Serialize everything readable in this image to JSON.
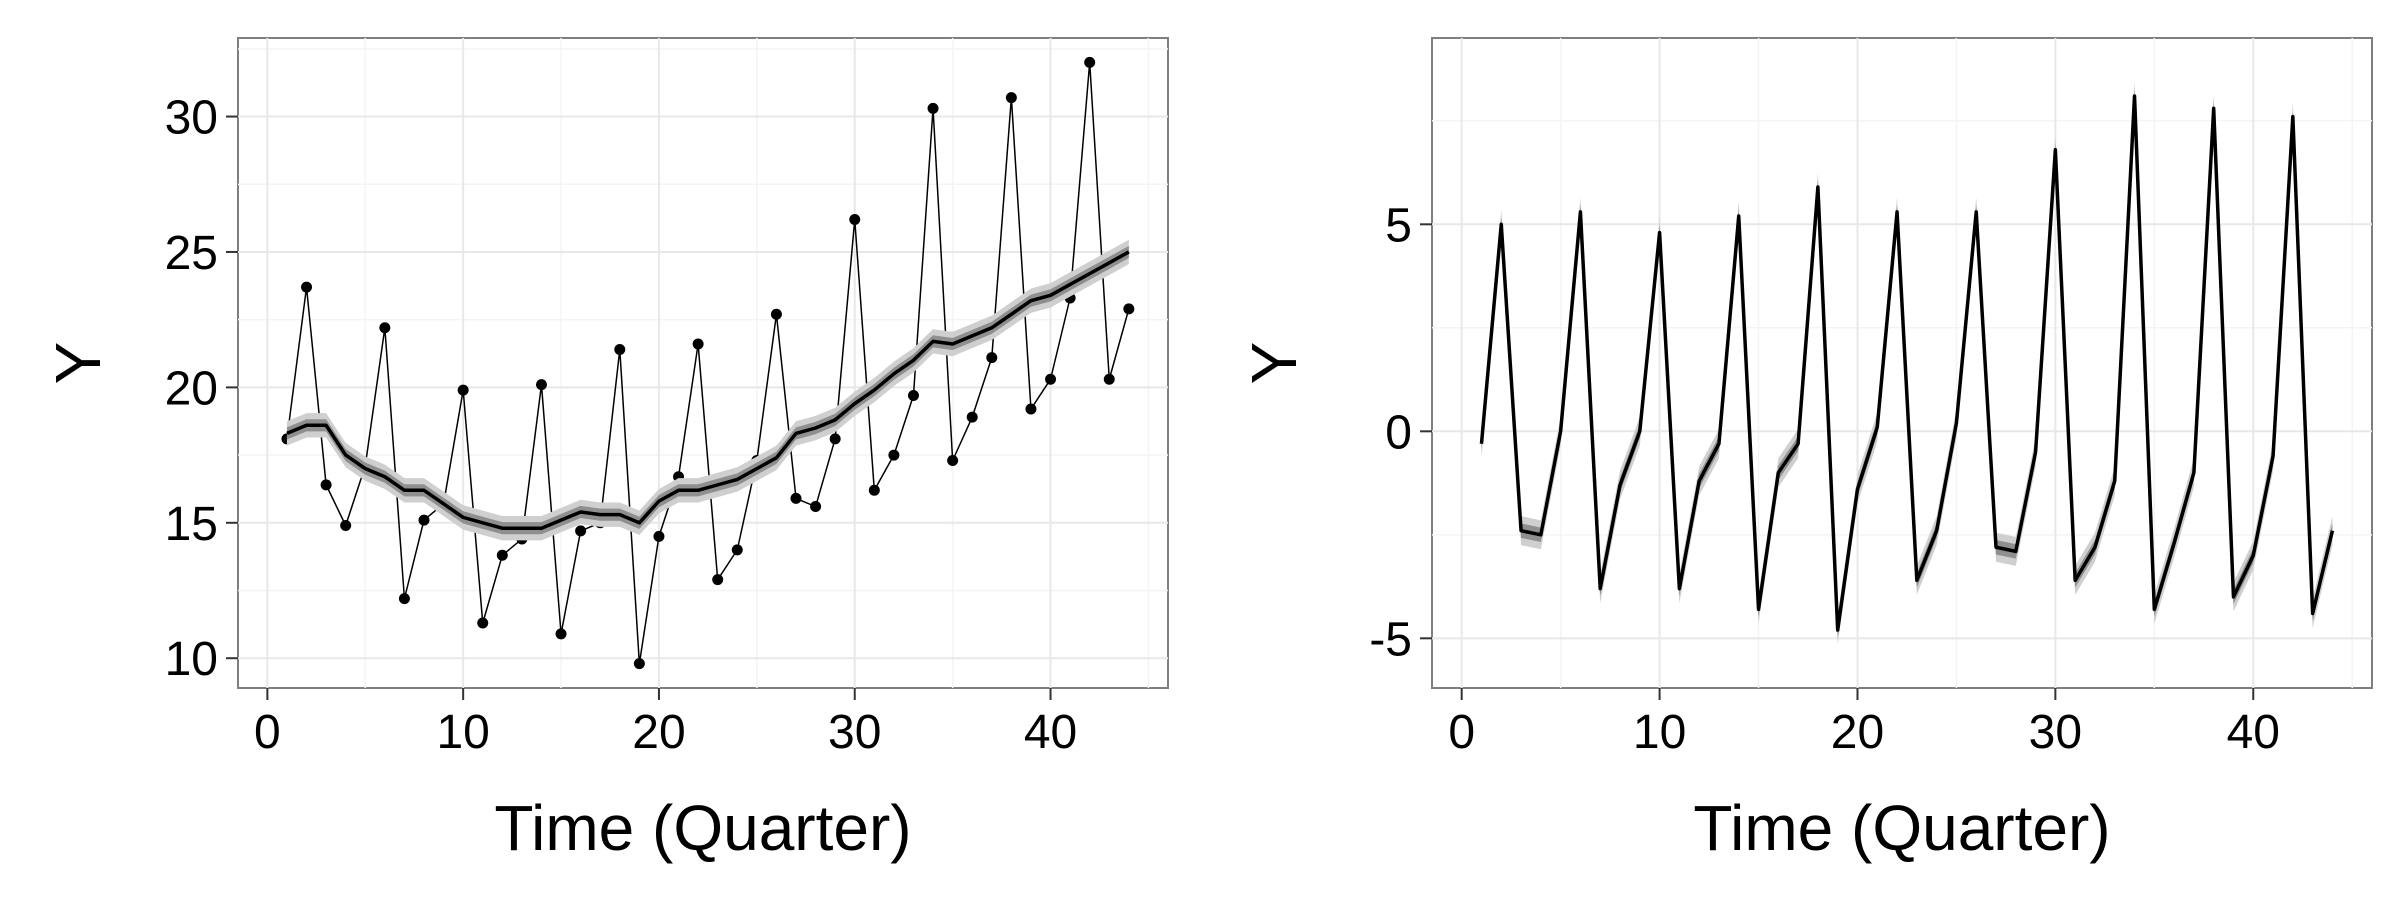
{
  "chart_data": [
    {
      "type": "line",
      "title": "",
      "xlabel": "Time (Quarter)",
      "ylabel": "Y",
      "xlim": [
        -1.5,
        46
      ],
      "ylim": [
        8.9,
        32.9
      ],
      "xticks": [
        0,
        10,
        20,
        30,
        40
      ],
      "yticks": [
        10,
        15,
        20,
        25,
        30
      ],
      "grid": true,
      "legend": "none",
      "series": [
        {
          "role": "observed",
          "markers": true,
          "x": [
            1,
            2,
            3,
            4,
            5,
            6,
            7,
            8,
            9,
            10,
            11,
            12,
            13,
            14,
            15,
            16,
            17,
            18,
            19,
            20,
            21,
            22,
            23,
            24,
            25,
            26,
            27,
            28,
            29,
            30,
            31,
            32,
            33,
            34,
            35,
            36,
            37,
            38,
            39,
            40,
            41,
            42,
            43,
            44
          ],
          "values": [
            18.1,
            23.7,
            16.4,
            14.9,
            17.1,
            22.2,
            12.2,
            15.1,
            15.7,
            19.9,
            11.3,
            13.8,
            14.4,
            20.1,
            10.9,
            14.7,
            15.0,
            21.4,
            9.8,
            14.5,
            16.7,
            21.6,
            12.9,
            14.0,
            17.3,
            22.7,
            15.9,
            15.6,
            18.1,
            26.2,
            16.2,
            17.5,
            19.7,
            30.3,
            17.3,
            18.9,
            21.1,
            30.7,
            19.2,
            20.3,
            23.3,
            32.0,
            20.3,
            22.9
          ]
        },
        {
          "role": "trend",
          "band": [
            0.45,
            0.9
          ],
          "x": [
            1,
            2,
            3,
            4,
            5,
            6,
            7,
            8,
            9,
            10,
            11,
            12,
            13,
            14,
            15,
            16,
            17,
            18,
            19,
            20,
            21,
            22,
            23,
            24,
            25,
            26,
            27,
            28,
            29,
            30,
            31,
            32,
            33,
            34,
            35,
            36,
            37,
            38,
            39,
            40,
            41,
            42,
            43,
            44
          ],
          "values": [
            18.3,
            18.6,
            18.6,
            17.5,
            17.0,
            16.7,
            16.2,
            16.2,
            15.7,
            15.2,
            15.0,
            14.8,
            14.8,
            14.8,
            15.1,
            15.4,
            15.3,
            15.3,
            15.0,
            15.8,
            16.2,
            16.2,
            16.4,
            16.6,
            17.0,
            17.4,
            18.3,
            18.5,
            18.8,
            19.4,
            19.9,
            20.5,
            21.0,
            21.7,
            21.6,
            21.9,
            22.2,
            22.7,
            23.2,
            23.4,
            23.8,
            24.2,
            24.6,
            25.0
          ]
        }
      ]
    },
    {
      "type": "line",
      "title": "",
      "xlabel": "Time (Quarter)",
      "ylabel": "Y",
      "xlim": [
        -1.5,
        46
      ],
      "ylim": [
        -6.2,
        9.5
      ],
      "xticks": [
        0,
        10,
        20,
        30,
        40
      ],
      "yticks": [
        -5,
        0,
        5
      ],
      "grid": true,
      "legend": "none",
      "series": [
        {
          "role": "seasonal",
          "band": [
            0.35,
            0.7
          ],
          "x": [
            1,
            2,
            3,
            4,
            5,
            6,
            7,
            8,
            9,
            10,
            11,
            12,
            13,
            14,
            15,
            16,
            17,
            18,
            19,
            20,
            21,
            22,
            23,
            24,
            25,
            26,
            27,
            28,
            29,
            30,
            31,
            32,
            33,
            34,
            35,
            36,
            37,
            38,
            39,
            40,
            41,
            42,
            43,
            44
          ],
          "values": [
            -0.3,
            5.0,
            -2.4,
            -2.5,
            0.0,
            5.3,
            -3.8,
            -1.3,
            0.0,
            4.8,
            -3.8,
            -1.2,
            -0.3,
            5.2,
            -4.3,
            -1.0,
            -0.3,
            5.9,
            -4.8,
            -1.4,
            0.1,
            5.3,
            -3.6,
            -2.4,
            0.2,
            5.3,
            -2.8,
            -2.9,
            -0.5,
            6.8,
            -3.6,
            -2.8,
            -1.2,
            8.1,
            -4.3,
            -2.7,
            -1.0,
            7.8,
            -4.0,
            -3.0,
            -0.6,
            7.6,
            -4.4,
            -2.4
          ]
        }
      ]
    }
  ]
}
